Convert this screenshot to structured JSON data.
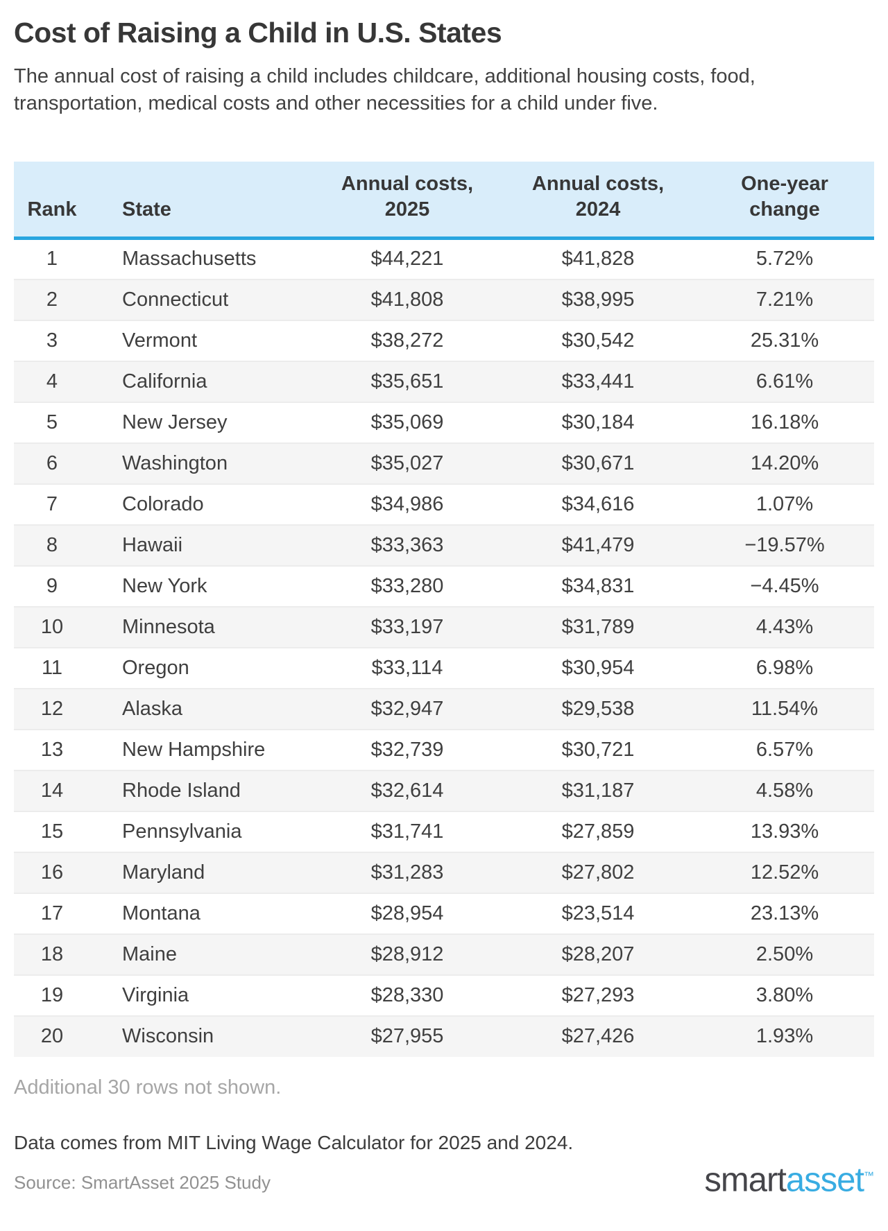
{
  "page": {
    "title": "Cost of Raising a Child in U.S. States",
    "subtitle": "The annual cost of raising a child includes childcare, additional housing costs, food, transportation, medical costs and other necessities for a child under five.",
    "rows_note": "Additional 30 rows not shown.",
    "data_note": "Data comes from MIT Living Wage Calculator for 2025 and 2024.",
    "source": "Source: SmartAsset 2025 Study",
    "logo": {
      "part1": "smart",
      "part2": "asset",
      "tm": "™"
    }
  },
  "colors": {
    "header_bg": "#d9edfa",
    "header_underline": "#29a6df",
    "row_alt_bg": "#f5f5f5",
    "row_divider": "#ececec",
    "muted_text": "#a6a6a6",
    "logo_blue": "#38ace2",
    "logo_dark": "#45454a"
  },
  "table": {
    "display_headers": [
      "Rank",
      "State",
      "Annual costs,\n2025",
      "Annual costs,\n2024",
      "One-year\nchange"
    ]
  },
  "chart_data": {
    "type": "table",
    "title": "Cost of Raising a Child in U.S. States",
    "columns": [
      "Rank",
      "State",
      "Annual costs, 2025",
      "Annual costs, 2024",
      "One-year change"
    ],
    "rows": [
      [
        "1",
        "Massachusetts",
        "$44,221",
        "$41,828",
        "5.72%"
      ],
      [
        "2",
        "Connecticut",
        "$41,808",
        "$38,995",
        "7.21%"
      ],
      [
        "3",
        "Vermont",
        "$38,272",
        "$30,542",
        "25.31%"
      ],
      [
        "4",
        "California",
        "$35,651",
        "$33,441",
        "6.61%"
      ],
      [
        "5",
        "New Jersey",
        "$35,069",
        "$30,184",
        "16.18%"
      ],
      [
        "6",
        "Washington",
        "$35,027",
        "$30,671",
        "14.20%"
      ],
      [
        "7",
        "Colorado",
        "$34,986",
        "$34,616",
        "1.07%"
      ],
      [
        "8",
        "Hawaii",
        "$33,363",
        "$41,479",
        "−19.57%"
      ],
      [
        "9",
        "New York",
        "$33,280",
        "$34,831",
        "−4.45%"
      ],
      [
        "10",
        "Minnesota",
        "$33,197",
        "$31,789",
        "4.43%"
      ],
      [
        "11",
        "Oregon",
        "$33,114",
        "$30,954",
        "6.98%"
      ],
      [
        "12",
        "Alaska",
        "$32,947",
        "$29,538",
        "11.54%"
      ],
      [
        "13",
        "New Hampshire",
        "$32,739",
        "$30,721",
        "6.57%"
      ],
      [
        "14",
        "Rhode Island",
        "$32,614",
        "$31,187",
        "4.58%"
      ],
      [
        "15",
        "Pennsylvania",
        "$31,741",
        "$27,859",
        "13.93%"
      ],
      [
        "16",
        "Maryland",
        "$31,283",
        "$27,802",
        "12.52%"
      ],
      [
        "17",
        "Montana",
        "$28,954",
        "$23,514",
        "23.13%"
      ],
      [
        "18",
        "Maine",
        "$28,912",
        "$28,207",
        "2.50%"
      ],
      [
        "19",
        "Virginia",
        "$28,330",
        "$27,293",
        "3.80%"
      ],
      [
        "20",
        "Wisconsin",
        "$27,955",
        "$27,426",
        "1.93%"
      ]
    ]
  }
}
